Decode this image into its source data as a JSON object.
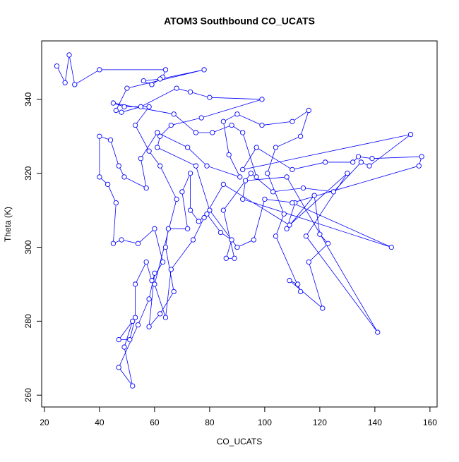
{
  "chart_data": {
    "type": "line",
    "marker": "circle",
    "title": "ATOM3 Southbound CO_UCATS",
    "x_label": "CO_UCATS",
    "y_label": "Theta (K)",
    "color": "#0000ff",
    "xlim": [
      19,
      162.6
    ],
    "ylim": [
      256.8,
      355.8
    ],
    "xticks": [
      20,
      40,
      60,
      80,
      100,
      120,
      140,
      160
    ],
    "yticks": [
      260,
      280,
      300,
      320,
      340
    ],
    "x": [
      24.5,
      27.5,
      29,
      31,
      40,
      64,
      63,
      59,
      56,
      62,
      78,
      50,
      46,
      48,
      55,
      68,
      73,
      80,
      99,
      77,
      66,
      62,
      61,
      75,
      80,
      90,
      96,
      100,
      111,
      108,
      118,
      120,
      123,
      116,
      121,
      109,
      112,
      113,
      104,
      107,
      101,
      104,
      113,
      116,
      110,
      99,
      90,
      85,
      87,
      91,
      79,
      72,
      61,
      55,
      57,
      49,
      47,
      44,
      40,
      40,
      43,
      46,
      45,
      48,
      54,
      60,
      63,
      59,
      57,
      53,
      53,
      51,
      47,
      52,
      49,
      52,
      47,
      54,
      58,
      60,
      58,
      62,
      67,
      64,
      65,
      72,
      70,
      73,
      73,
      76,
      79,
      84,
      88,
      86,
      89,
      85,
      95,
      103,
      114,
      125,
      135,
      138,
      153,
      92,
      97,
      110,
      122,
      132,
      134,
      139,
      157,
      156,
      110,
      146,
      92,
      93,
      108,
      141,
      115,
      130,
      109,
      85,
      78,
      74,
      66,
      64,
      60,
      68,
      62,
      58,
      53,
      58,
      49,
      45,
      67,
      75,
      81,
      88,
      92,
      97
    ],
    "values": [
      349,
      344.5,
      352,
      344,
      348,
      348,
      346,
      344,
      345,
      345.5,
      348,
      343,
      337,
      336.5,
      338,
      343,
      342,
      340.5,
      340,
      335,
      333,
      330,
      327,
      322,
      310,
      300,
      302,
      313,
      312,
      305,
      314,
      303.5,
      301,
      296,
      283.5,
      291,
      290,
      288,
      303,
      309,
      320,
      327,
      330,
      337,
      334,
      333,
      336,
      334,
      325,
      319,
      322,
      327,
      331,
      324,
      316,
      319,
      322,
      329,
      330,
      319,
      317,
      312,
      301,
      302,
      301,
      305,
      296,
      291,
      296,
      290,
      281,
      275,
      275,
      280,
      273,
      262.5,
      267.5,
      279,
      286,
      293,
      278.5,
      282,
      288,
      300,
      305,
      305,
      315,
      320,
      310,
      307,
      309,
      304,
      302,
      297,
      297,
      310,
      320,
      315,
      316,
      315,
      323,
      322,
      330.5,
      321,
      327,
      321,
      323,
      323,
      324.5,
      324,
      324.5,
      322,
      312,
      300,
      313,
      318,
      319,
      277,
      303,
      320,
      306,
      317,
      308,
      302,
      294,
      281,
      290,
      313,
      322,
      326,
      333,
      338,
      338,
      339,
      336,
      331,
      331,
      333,
      331,
      319
    ]
  }
}
